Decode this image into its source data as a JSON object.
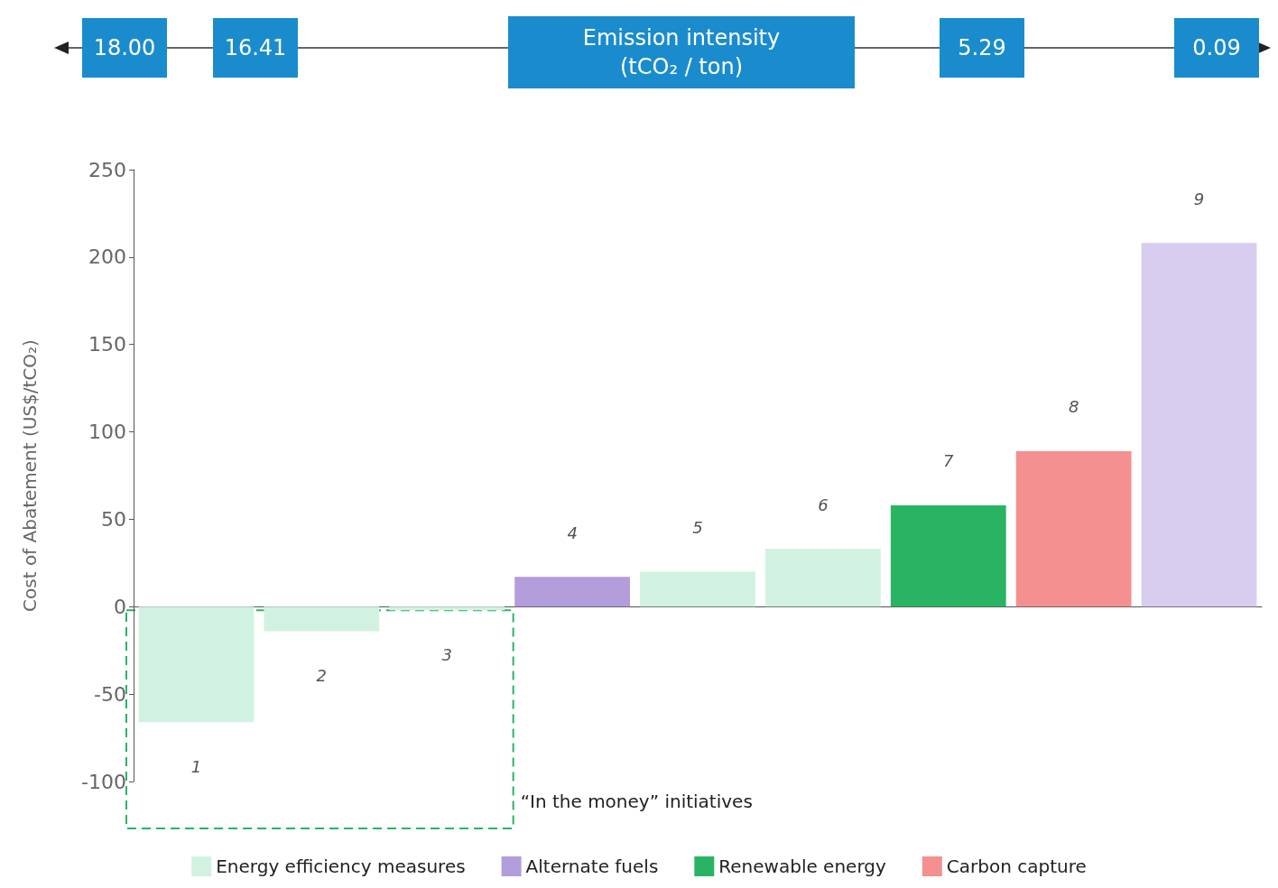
{
  "chart_data": {
    "type": "bar",
    "stacked": true,
    "ylabel": "Cost of Abatement (US$/tCO₂)",
    "x2label": "Emission intensity (tCO₂ / ton)",
    "categories": [
      "1",
      "2",
      "3",
      "4",
      "5",
      "6",
      "7",
      "8",
      "9"
    ],
    "series": [
      {
        "name": "Energy efficiency measures",
        "color": "#d1f2e0",
        "values": [
          -66,
          -14,
          -2,
          null,
          20,
          33,
          null,
          null,
          null
        ]
      },
      {
        "name": "Alternate fuels",
        "color": "#b39ddb",
        "colors": [
          null,
          null,
          null,
          "#b39ddb",
          null,
          null,
          null,
          null,
          "#d8cdee"
        ],
        "values": [
          null,
          null,
          null,
          17,
          null,
          null,
          null,
          null,
          208
        ]
      },
      {
        "name": "Renewable energy",
        "color": "#29b463",
        "values": [
          null,
          null,
          null,
          null,
          null,
          null,
          58,
          null,
          null
        ]
      },
      {
        "name": "Carbon capture",
        "color": "#f49090",
        "values": [
          null,
          null,
          null,
          null,
          null,
          null,
          null,
          89,
          null
        ]
      }
    ],
    "ylim": [
      -100,
      250
    ],
    "yticks": [
      -100,
      -50,
      0,
      50,
      100,
      150,
      200,
      250
    ],
    "legend": "bottom",
    "annotations": [
      "18.00",
      "16.41",
      "5.29",
      "0.09",
      "“In the money” initiatives"
    ]
  }
}
